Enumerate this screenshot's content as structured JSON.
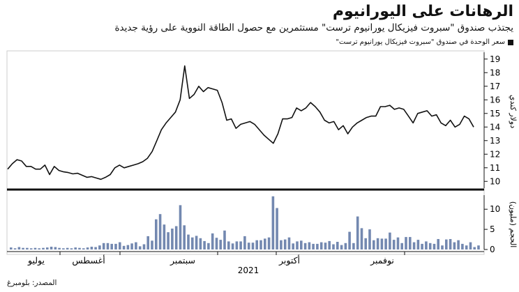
{
  "header": {
    "title": "الرهانات على اليورانيوم",
    "subtitle": "يجتذب صندوق \"سبروت فيزيكال يورانيوم ترست\" مستثمرين مع حصول الطاقة النووية على رؤية جديدة",
    "legend_label": "سعر الوحدة في صندوق \"سبروت فيزيكال يورانيوم ترست\""
  },
  "footer": {
    "source": "المصدر: بلومبرغ"
  },
  "chart_data": [
    {
      "type": "line",
      "ylabel": "دولار كندي",
      "ylim": [
        9.5,
        19.5
      ],
      "yticks": [
        10,
        11,
        12,
        13,
        14,
        15,
        16,
        17,
        18,
        19
      ],
      "series": [
        {
          "values": [
            10.9,
            11.3,
            11.6,
            11.5,
            11.1,
            11.1,
            10.9,
            10.9,
            11.2,
            10.5,
            11.1,
            10.8,
            10.7,
            10.65,
            10.55,
            10.6,
            10.45,
            10.3,
            10.35,
            10.25,
            10.15,
            10.3,
            10.5,
            11.0,
            11.2,
            11.0,
            11.1,
            11.2,
            11.3,
            11.45,
            11.7,
            12.2,
            13.0,
            13.8,
            14.3,
            14.7,
            15.1,
            16.0,
            18.5,
            16.1,
            16.4,
            17.0,
            16.6,
            16.9,
            16.8,
            16.7,
            15.8,
            14.5,
            14.6,
            13.9,
            14.2,
            14.3,
            14.4,
            14.2,
            13.8,
            13.4,
            13.1,
            12.8,
            13.5,
            14.6,
            14.6,
            14.7,
            15.4,
            15.2,
            15.4,
            15.8,
            15.5,
            15.1,
            14.5,
            14.3,
            14.4,
            13.8,
            14.1,
            13.5,
            14.0,
            14.3,
            14.5,
            14.7,
            14.8,
            14.8,
            15.5,
            15.5,
            15.6,
            15.3,
            15.4,
            15.3,
            14.8,
            14.3,
            15.0,
            15.1,
            15.2,
            14.8,
            14.9,
            14.3,
            14.1,
            14.5,
            14.0,
            14.2,
            14.8,
            14.6,
            14.0
          ]
        }
      ],
      "x_labels": [
        "يوليو",
        "أغسطس",
        "سبتمبر",
        "أكتوبر",
        "نوفمبر"
      ],
      "year_label": "2021",
      "grid": false,
      "legend_position": "top-right"
    },
    {
      "type": "bar",
      "ylabel": "الحجم (مليون)",
      "ylim": [
        0,
        13.5
      ],
      "yticks": [
        0,
        5,
        10
      ],
      "color": "#7388b0",
      "series": [
        {
          "values": [
            0.5,
            0.3,
            0.6,
            0.4,
            0.4,
            0.3,
            0.4,
            0.3,
            0.4,
            0.5,
            0.7,
            0.6,
            0.4,
            0.3,
            0.4,
            0.3,
            0.5,
            0.4,
            0.3,
            0.5,
            0.7,
            0.6,
            1.0,
            1.6,
            1.6,
            1.4,
            1.4,
            1.8,
            0.9,
            1.1,
            1.5,
            1.8,
            0.8,
            1.3,
            3.3,
            2.2,
            7.5,
            8.8,
            6.2,
            4.3,
            5.2,
            5.8,
            11.0,
            6.0,
            3.7,
            3.0,
            3.4,
            2.8,
            2.1,
            1.6,
            4.0,
            2.9,
            2.4,
            4.7,
            2.0,
            1.5,
            2.0,
            2.0,
            3.3,
            1.7,
            1.7,
            2.3,
            2.3,
            2.7,
            3.0,
            13.2,
            10.3,
            2.3,
            2.5,
            3.0,
            1.5,
            2.0,
            2.2,
            1.6,
            1.8,
            1.4,
            1.4,
            1.8,
            1.7,
            2.1,
            1.3,
            1.9,
            1.1,
            1.6,
            4.4,
            1.6,
            8.2,
            5.3,
            2.8,
            5.0,
            2.3,
            2.8,
            2.7,
            2.7,
            4.2,
            2.4,
            3.0,
            1.6,
            3.1,
            3.1,
            1.8,
            2.4,
            1.4,
            2.0,
            1.6,
            1.4,
            2.6,
            1.0,
            2.5,
            2.6,
            1.8,
            2.3,
            1.4,
            1.0,
            1.8,
            0.6,
            1.0
          ]
        }
      ]
    }
  ]
}
